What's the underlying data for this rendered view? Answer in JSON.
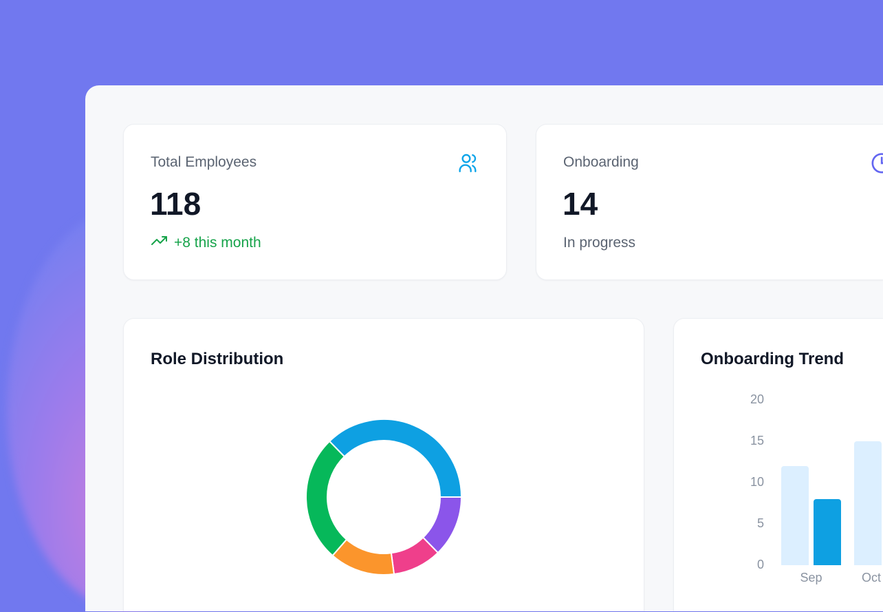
{
  "stats": [
    {
      "label": "Total Employees",
      "value": "118",
      "sub": "+8 this month",
      "icon": "users-icon",
      "sub_icon": "trending-up-icon",
      "accent": "#0ea5e9"
    },
    {
      "label": "Onboarding",
      "value": "14",
      "sub": "In progress",
      "icon": "clock-icon",
      "accent": "#6366f1"
    }
  ],
  "chart_data": [
    {
      "type": "pie",
      "title": "Role Distribution",
      "donut": true,
      "slices": [
        {
          "value": 44,
          "color": "#0ea0e2"
        },
        {
          "value": 15,
          "color": "#8b55ea"
        },
        {
          "value": 12,
          "color": "#ef3f8b"
        },
        {
          "value": 16,
          "color": "#fb952c"
        },
        {
          "value": 31,
          "color": "#06b85a"
        }
      ]
    },
    {
      "type": "bar",
      "title": "Onboarding Trend",
      "categories": [
        "Sep",
        "Oct"
      ],
      "series": [
        {
          "values": [
            12,
            15
          ],
          "color": "#dcefff"
        },
        {
          "values": [
            8,
            null
          ],
          "color": "#0ea0e2"
        }
      ],
      "yticks": [
        "0",
        "5",
        "10",
        "15",
        "20"
      ],
      "ylim": [
        0,
        20
      ]
    }
  ]
}
